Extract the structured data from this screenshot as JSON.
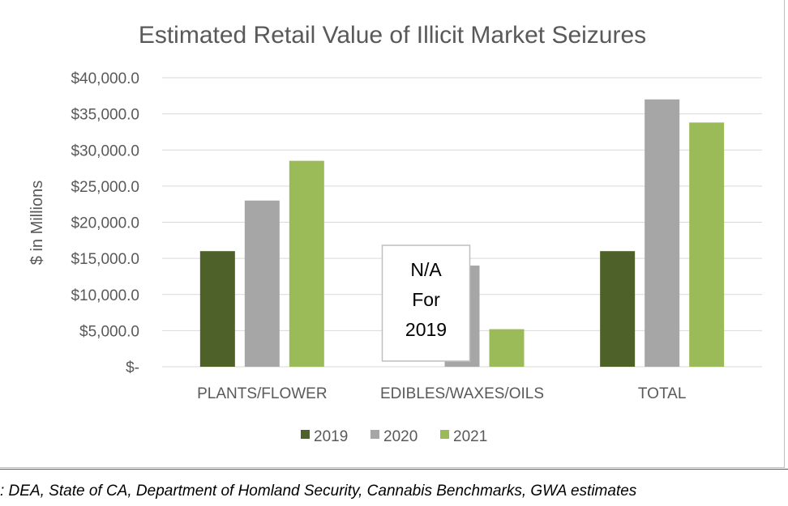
{
  "chart_data": {
    "type": "bar",
    "title": "Estimated Retail Value of Illicit Market Seizures",
    "ylabel": "$ in Millions",
    "xlabel": "",
    "categories": [
      "PLANTS/FLOWER",
      "EDIBLES/WAXES/OILS",
      "TOTAL"
    ],
    "series": [
      {
        "name": "2019",
        "color": "#4e6128",
        "values": [
          16000,
          null,
          16000
        ]
      },
      {
        "name": "2020",
        "color": "#a6a6a6",
        "values": [
          23000,
          14000,
          37000
        ]
      },
      {
        "name": "2021",
        "color": "#9bbb59",
        "values": [
          28500,
          5200,
          33800
        ]
      }
    ],
    "ylim": [
      0,
      40000
    ],
    "yticks": [
      0,
      5000,
      10000,
      15000,
      20000,
      25000,
      30000,
      35000,
      40000
    ],
    "ytick_labels": [
      "$-",
      "$5,000.0",
      "$10,000.0",
      "$15,000.0",
      "$20,000.0",
      "$25,000.0",
      "$30,000.0",
      "$35,000.0",
      "$40,000.0"
    ],
    "grid": true,
    "legend_position": "bottom",
    "annotation": {
      "lines": [
        "N/A",
        "For",
        "2019"
      ],
      "category": "EDIBLES/WAXES/OILS",
      "series": "2019"
    }
  },
  "source_note": ": DEA, State of CA, Department of Homland Security, Cannabis Benchmarks, GWA estimates"
}
